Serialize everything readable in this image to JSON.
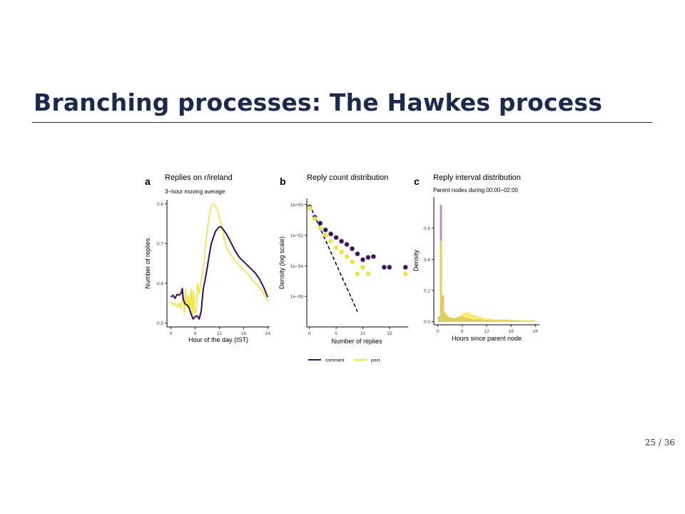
{
  "slide": {
    "title": "Branching processes: The Hawkes process",
    "page_number": "25 / 36"
  },
  "colors": {
    "comment": "#3b0f52",
    "post": "#f2e33a",
    "histogram_overlap": "#b59a3a",
    "histogram_comment": "#9a7ab8"
  },
  "chart_data": [
    {
      "panel": "a",
      "type": "line",
      "title": "Replies on r/ireland",
      "subtitle": "3−hour moving average",
      "xlabel": "Hour of the day (IST)",
      "ylabel": "Number of replies",
      "xlim": [
        -1,
        24.5
      ],
      "ylim": [
        0.49,
        0.81
      ],
      "xticks": [
        "0",
        "6",
        "12",
        "18",
        "24"
      ],
      "yticks": [
        "0.5",
        "0.6",
        "0.7",
        "0.8"
      ],
      "series": [
        {
          "name": "comment",
          "x": [
            0,
            0.5,
            1,
            1.5,
            2,
            2.5,
            2.8,
            3,
            3.2,
            3.5,
            4,
            4.5,
            5,
            5.5,
            6,
            6.5,
            7,
            7.5,
            8,
            8.5,
            9,
            9.5,
            10,
            10.5,
            11,
            11.5,
            12,
            12.5,
            13,
            14,
            15,
            16,
            17,
            18,
            19,
            20,
            21,
            22,
            23,
            24
          ],
          "y": [
            0.565,
            0.57,
            0.562,
            0.572,
            0.57,
            0.575,
            0.587,
            0.562,
            0.555,
            0.548,
            0.545,
            0.538,
            0.522,
            0.51,
            0.516,
            0.518,
            0.51,
            0.53,
            0.585,
            0.61,
            0.64,
            0.672,
            0.7,
            0.715,
            0.73,
            0.737,
            0.742,
            0.742,
            0.735,
            0.72,
            0.7,
            0.68,
            0.665,
            0.655,
            0.645,
            0.635,
            0.625,
            0.61,
            0.59,
            0.565
          ]
        },
        {
          "name": "post",
          "x": [
            0,
            0.5,
            1,
            1.5,
            2,
            2.5,
            3,
            3.3,
            3.6,
            4,
            4.3,
            4.6,
            5,
            5.3,
            5.6,
            6,
            6.3,
            6.6,
            7,
            7.5,
            8,
            8.5,
            9,
            9.5,
            10,
            10.5,
            11,
            11.5,
            12,
            12.5,
            13,
            13.5,
            14,
            15,
            16,
            17,
            18,
            19,
            20,
            21,
            22,
            23,
            24
          ],
          "y": [
            0.555,
            0.545,
            0.55,
            0.54,
            0.55,
            0.535,
            0.578,
            0.525,
            0.585,
            0.54,
            0.57,
            0.53,
            0.585,
            0.51,
            0.58,
            0.525,
            0.53,
            0.6,
            0.575,
            0.605,
            0.635,
            0.69,
            0.735,
            0.77,
            0.795,
            0.8,
            0.795,
            0.785,
            0.765,
            0.745,
            0.72,
            0.7,
            0.685,
            0.67,
            0.655,
            0.645,
            0.635,
            0.625,
            0.61,
            0.6,
            0.59,
            0.575,
            0.555
          ]
        }
      ]
    },
    {
      "panel": "b",
      "type": "scatter",
      "title": "Reply count distribution",
      "xlabel": "Number of replies",
      "ylabel": "Density (log scale)",
      "xlim": [
        -0.5,
        18.5
      ],
      "ylim": [
        1e-08,
        2.5
      ],
      "log_y": true,
      "xticks": [
        "0",
        "5",
        "10",
        "15"
      ],
      "yticks": [
        "1e+00",
        "1e−02",
        "1e−04",
        "1e−06"
      ],
      "legend": [
        "comment",
        "post"
      ],
      "legend_position": "bottom",
      "reference_line": {
        "x": [
          0,
          9
        ],
        "y": [
          1,
          1e-07
        ],
        "style": "dashed"
      },
      "series": [
        {
          "name": "comment",
          "x": [
            0,
            1,
            2,
            3,
            4,
            5,
            6,
            7,
            8,
            9,
            10,
            11,
            12,
            14,
            15,
            18
          ],
          "y": [
            0.7,
            0.15,
            0.06,
            0.022,
            0.012,
            0.007,
            0.004,
            0.0025,
            0.0013,
            0.0006,
            0.00025,
            0.00035,
            0.0004,
            8e-05,
            8e-05,
            8e-05
          ]
        },
        {
          "name": "post",
          "x": [
            0,
            1,
            2,
            3,
            4,
            5,
            6,
            7,
            8,
            9,
            10,
            11,
            18
          ],
          "y": [
            0.6,
            0.12,
            0.03,
            0.01,
            0.004,
            0.0015,
            0.0008,
            0.0004,
            0.00018,
            3e-05,
            8e-05,
            3e-05,
            3e-05
          ]
        }
      ]
    },
    {
      "panel": "c",
      "type": "bar",
      "title": "Reply interval distribution",
      "subtitle": "Parent nodes during 00:00−02:00",
      "xlabel": "Hours since parent node",
      "ylabel": "Density",
      "xlim": [
        -1,
        25
      ],
      "ylim": [
        -0.02,
        0.8
      ],
      "xticks": [
        "0",
        "6",
        "12",
        "18",
        "24"
      ],
      "yticks": [
        "0.0",
        "0.2",
        "0.4",
        "0.6"
      ],
      "bin_width": 0.5,
      "series": [
        {
          "name": "comment",
          "values": [
            0.03,
            0.75,
            0.17,
            0.06,
            0.04,
            0.03,
            0.025,
            0.02,
            0.02,
            0.025,
            0.03,
            0.035,
            0.03,
            0.025,
            0.02,
            0.02,
            0.015,
            0.015,
            0.015,
            0.015,
            0.015,
            0.015,
            0.01,
            0.01,
            0.01,
            0.01,
            0.01,
            0.01,
            0.01,
            0.01,
            0.01,
            0.01,
            0.01,
            0.01,
            0.01,
            0.01,
            0.01,
            0.01,
            0.01,
            0.01,
            0.005,
            0.005,
            0.005,
            0.005,
            0.005,
            0.005,
            0.005,
            0.005
          ]
        },
        {
          "name": "post",
          "values": [
            0.02,
            0.52,
            0.17,
            0.06,
            0.04,
            0.03,
            0.025,
            0.025,
            0.025,
            0.03,
            0.035,
            0.045,
            0.055,
            0.06,
            0.06,
            0.055,
            0.05,
            0.045,
            0.04,
            0.035,
            0.03,
            0.03,
            0.025,
            0.02,
            0.02,
            0.02,
            0.02,
            0.015,
            0.015,
            0.015,
            0.015,
            0.015,
            0.015,
            0.015,
            0.015,
            0.01,
            0.01,
            0.01,
            0.01,
            0.01,
            0.01,
            0.01,
            0.01,
            0.01,
            0.01,
            0.01,
            0.01,
            0.01
          ]
        }
      ]
    }
  ]
}
